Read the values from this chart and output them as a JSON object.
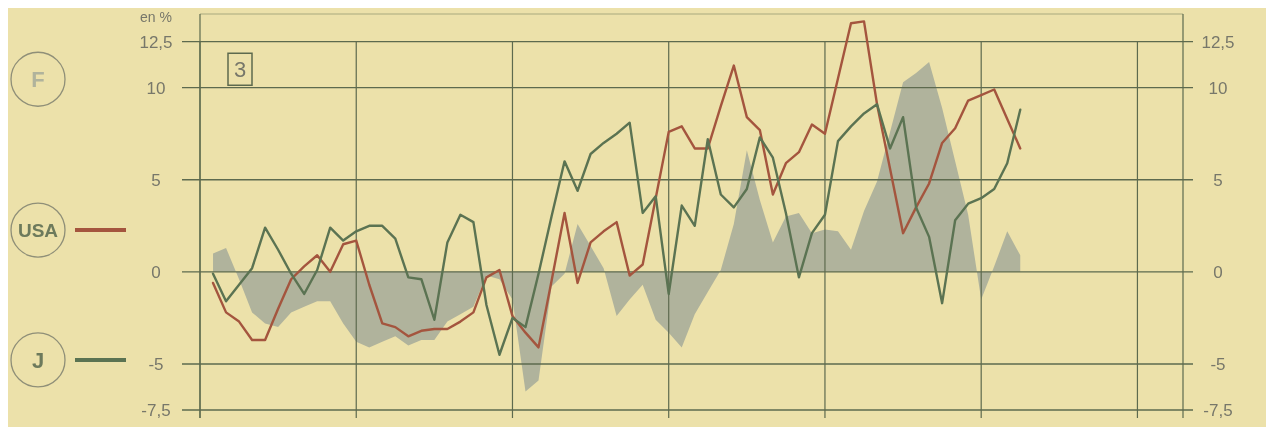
{
  "chart_data": {
    "type": "line",
    "ylabel": "en %",
    "annotations": [
      "3"
    ],
    "categories": [
      null,
      null,
      null,
      null,
      null,
      null,
      null,
      null,
      null,
      null,
      null,
      null,
      null,
      null,
      null,
      null,
      null,
      null,
      null,
      null,
      null,
      null,
      null,
      null,
      null,
      null,
      null,
      null,
      null,
      null,
      null,
      null,
      null,
      null,
      null,
      null,
      null,
      null,
      null,
      null,
      null,
      null,
      null,
      null,
      null,
      null,
      null,
      null,
      null,
      null,
      null,
      null,
      null,
      null,
      null,
      null,
      null,
      null,
      null,
      null,
      null,
      null,
      null
    ],
    "ylim": [
      -7.5,
      14
    ],
    "yticks": [
      {
        "value": -7.5,
        "label": "-7,5"
      },
      -5,
      0,
      5,
      10,
      {
        "value": 12.5,
        "label": "12,5"
      }
    ],
    "y2lim": [
      -7.5,
      14
    ],
    "y2ticks": [
      {
        "value": -7.5,
        "label": "-7,5"
      },
      -5,
      0,
      5,
      10,
      {
        "value": 12.5,
        "label": "12,5"
      }
    ],
    "grid": true,
    "legend": "left",
    "series": [
      {
        "name": "F",
        "type": "area",
        "color": "#b0b39c",
        "values": [
          1.0,
          1.3,
          -0.4,
          -2.2,
          -2.8,
          -3.0,
          -2.2,
          -1.9,
          -1.6,
          -1.6,
          -2.8,
          -3.8,
          -4.1,
          -3.8,
          -3.5,
          -4.0,
          -3.7,
          -3.7,
          -2.7,
          -2.3,
          -1.9,
          -0.2,
          -0.4,
          -1.5,
          -6.5,
          -5.9,
          -0.8,
          -0.1,
          2.6,
          1.4,
          0.2,
          -2.4,
          -1.5,
          -0.7,
          -2.6,
          -3.3,
          -4.1,
          -2.3,
          -1.1,
          0.1,
          2.6,
          6.6,
          3.9,
          1.6,
          3.0,
          3.2,
          2.1,
          2.3,
          2.2,
          1.2,
          3.3,
          4.9,
          7.6,
          10.3,
          10.8,
          11.4,
          8.9,
          6.0,
          3.1,
          -1.5,
          0.3,
          2.2,
          0.9
        ]
      },
      {
        "name": "USA",
        "color": "#a4553e",
        "values": [
          -0.6,
          -2.2,
          -2.7,
          -3.7,
          -3.7,
          -2.0,
          -0.4,
          0.3,
          0.9,
          0.0,
          1.5,
          1.7,
          -0.7,
          -2.8,
          -3.0,
          -3.5,
          -3.2,
          -3.1,
          -3.1,
          -2.7,
          -2.2,
          -0.3,
          0.1,
          -2.4,
          -3.3,
          -4.1,
          -0.5,
          3.2,
          -0.6,
          1.6,
          2.2,
          2.7,
          -0.2,
          0.4,
          4.0,
          7.6,
          7.9,
          6.7,
          6.7,
          9.0,
          11.2,
          8.4,
          7.7,
          4.2,
          5.9,
          6.5,
          8.0,
          7.5,
          10.5,
          13.5,
          13.6,
          9.1,
          5.6,
          2.1,
          3.5,
          4.8,
          7.0,
          7.8,
          9.3,
          9.6,
          9.9,
          8.3,
          6.7
        ]
      },
      {
        "name": "J",
        "color": "#5b7352",
        "values": [
          -0.1,
          -1.6,
          -0.7,
          0.2,
          2.4,
          1.2,
          -0.1,
          -1.2,
          0.1,
          2.4,
          1.7,
          2.2,
          2.5,
          2.5,
          1.8,
          -0.3,
          -0.4,
          -2.6,
          1.6,
          3.1,
          2.7,
          -1.8,
          -4.5,
          -2.5,
          -3.0,
          -0.1,
          3.0,
          6.0,
          4.4,
          6.4,
          7.0,
          7.5,
          8.1,
          3.2,
          4.1,
          -1.2,
          3.6,
          2.5,
          7.2,
          4.2,
          3.5,
          4.5,
          7.3,
          6.2,
          3.2,
          -0.3,
          2.1,
          3.1,
          7.1,
          7.9,
          8.6,
          9.1,
          6.7,
          8.4,
          3.5,
          1.9,
          -1.7,
          2.8,
          3.7,
          4.0,
          4.5,
          5.9,
          8.8
        ]
      }
    ]
  }
}
